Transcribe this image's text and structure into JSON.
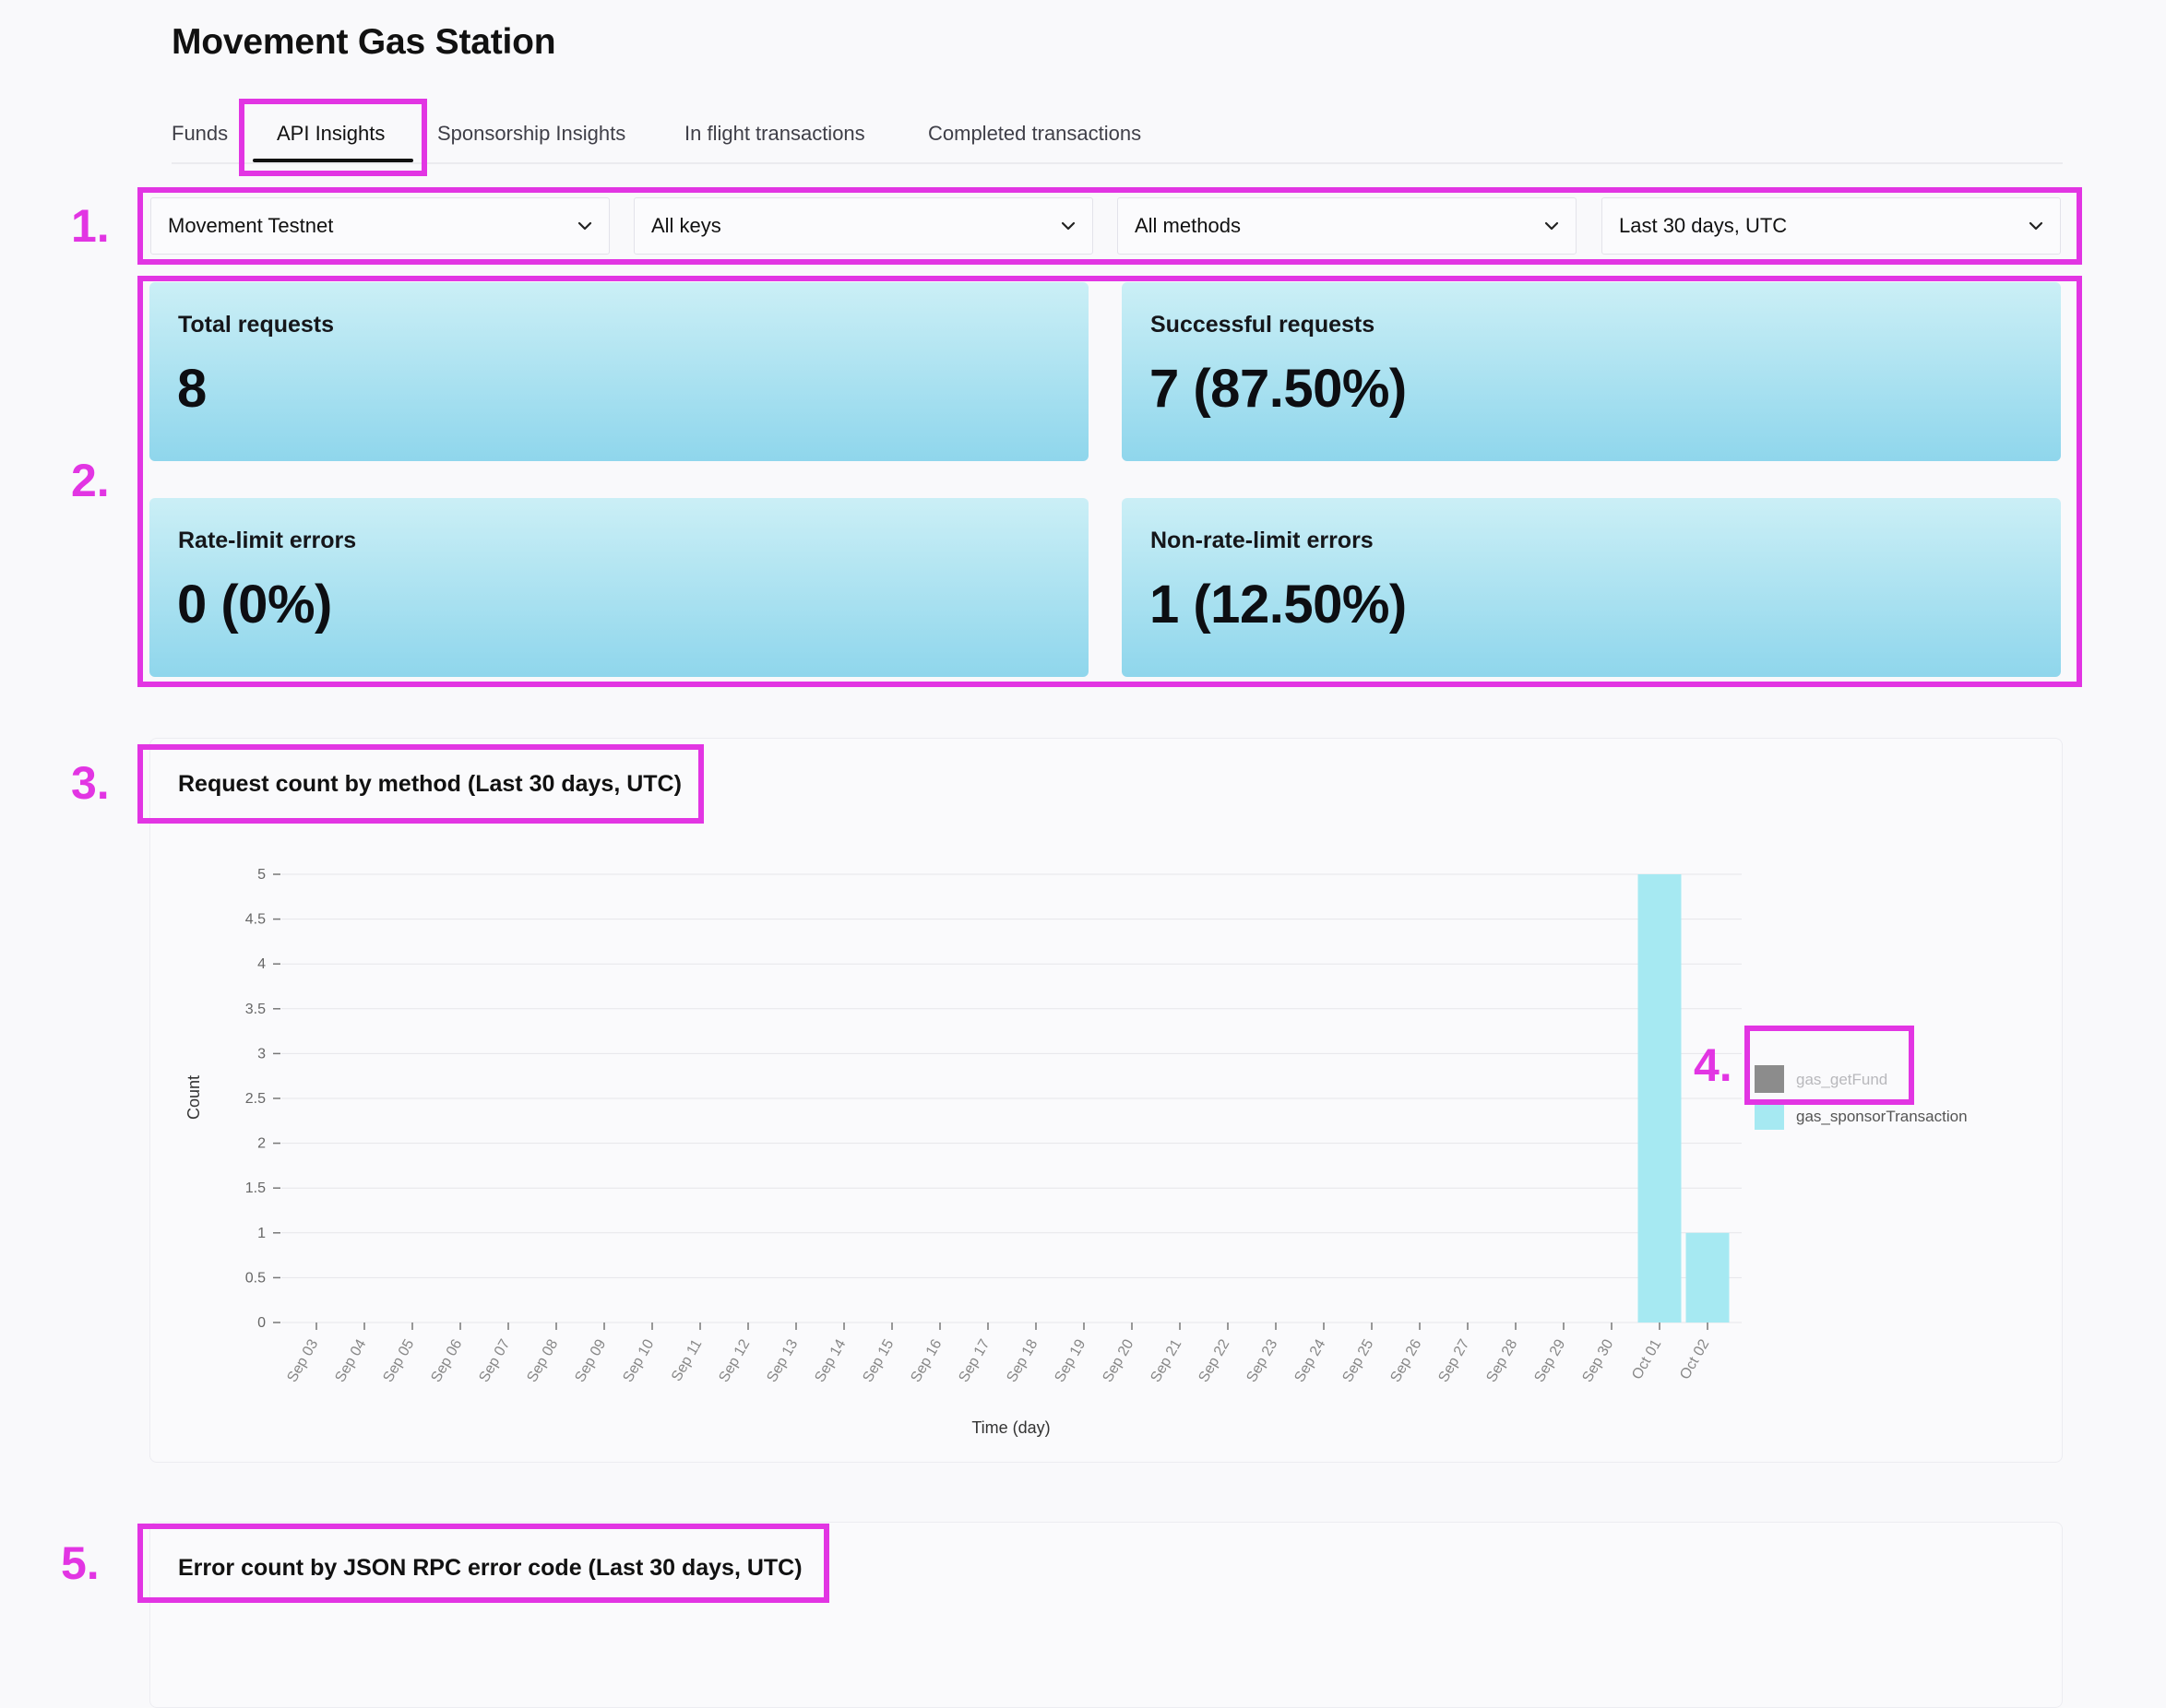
{
  "app": {
    "title": "Movement Gas Station"
  },
  "tabs": [
    {
      "label": "Funds",
      "active": false
    },
    {
      "label": "API Insights",
      "active": true
    },
    {
      "label": "Sponsorship Insights",
      "active": false
    },
    {
      "label": "In flight transactions",
      "active": false
    },
    {
      "label": "Completed transactions",
      "active": false
    }
  ],
  "filters": {
    "network": "Movement Testnet",
    "keys": "All keys",
    "methods": "All methods",
    "range": "Last 30 days, UTC"
  },
  "stats": {
    "total": {
      "label": "Total requests",
      "value": "8"
    },
    "successful": {
      "label": "Successful requests",
      "value": "7 (87.50%)"
    },
    "rate_limit": {
      "label": "Rate-limit errors",
      "value": "0 (0%)"
    },
    "non_rate_limit": {
      "label": "Non-rate-limit errors",
      "value": "1 (12.50%)"
    }
  },
  "request_chart": {
    "title": "Request count by method (Last 30 days, UTC)"
  },
  "error_chart": {
    "title": "Error count by JSON RPC error code (Last 30 days, UTC)"
  },
  "annotations": [
    "1.",
    "2.",
    "3.",
    "4.",
    "5."
  ],
  "colors": {
    "highlight": "#e235e3",
    "bar": "#a6e9f2",
    "legend_gray": "#8c8c8c"
  },
  "icons": {
    "dropdown": "chevron-down-icon"
  },
  "chart_data": {
    "type": "bar",
    "title": "",
    "xlabel": "Time (day)",
    "ylabel": "Count",
    "ylim": [
      0,
      5
    ],
    "yticks": [
      "0",
      "0.5",
      "1",
      "1.5",
      "2",
      "2.5",
      "3",
      "3.5",
      "4",
      "4.5",
      "5"
    ],
    "categories": [
      "Sep 03",
      "Sep 04",
      "Sep 05",
      "Sep 06",
      "Sep 07",
      "Sep 08",
      "Sep 09",
      "Sep 10",
      "Sep 11",
      "Sep 12",
      "Sep 13",
      "Sep 14",
      "Sep 15",
      "Sep 16",
      "Sep 17",
      "Sep 18",
      "Sep 19",
      "Sep 20",
      "Sep 21",
      "Sep 22",
      "Sep 23",
      "Sep 24",
      "Sep 25",
      "Sep 26",
      "Sep 27",
      "Sep 28",
      "Sep 29",
      "Sep 30",
      "Oct 01",
      "Oct 02"
    ],
    "series": [
      {
        "name": "gas_getFund",
        "color": "#8c8c8c",
        "hidden": true,
        "values": [
          0,
          0,
          0,
          0,
          0,
          0,
          0,
          0,
          0,
          0,
          0,
          0,
          0,
          0,
          0,
          0,
          0,
          0,
          0,
          0,
          0,
          0,
          0,
          0,
          0,
          0,
          0,
          0,
          0,
          0
        ]
      },
      {
        "name": "gas_sponsorTransaction",
        "color": "#a6e9f2",
        "hidden": false,
        "values": [
          0,
          0,
          0,
          0,
          0,
          0,
          0,
          0,
          0,
          0,
          0,
          0,
          0,
          0,
          0,
          0,
          0,
          0,
          0,
          0,
          0,
          0,
          0,
          0,
          0,
          0,
          0,
          0,
          5,
          1
        ]
      }
    ],
    "grid": true,
    "legend": "right"
  }
}
